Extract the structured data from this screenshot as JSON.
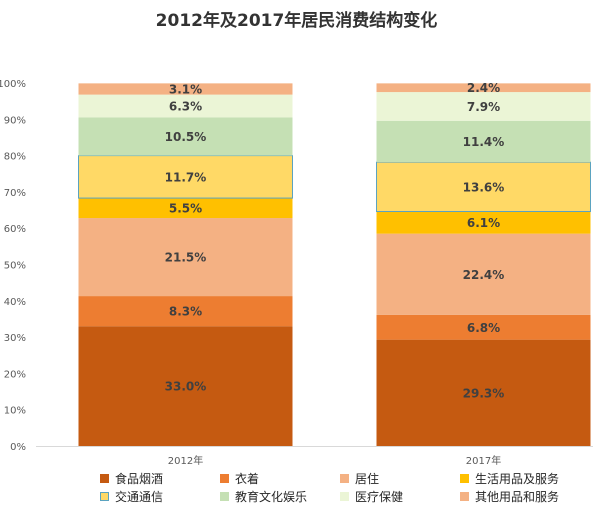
{
  "chart_data": {
    "type": "bar",
    "stacked": true,
    "percent": true,
    "title": "2012年及2017年居民消费结构变化",
    "categories": [
      "2012年",
      "2017年"
    ],
    "ylim": [
      0,
      100
    ],
    "yticks": [
      "0%",
      "10%",
      "20%",
      "30%",
      "40%",
      "50%",
      "60%",
      "70%",
      "80%",
      "90%",
      "100%"
    ],
    "legend_position": "bottom",
    "series": [
      {
        "name": "食品烟酒",
        "values": [
          33.0,
          29.3
        ],
        "labels": [
          "33.0%",
          "29.3%"
        ],
        "color": "#C55A11"
      },
      {
        "name": "衣着",
        "values": [
          8.3,
          6.8
        ],
        "labels": [
          "8.3%",
          "6.8%"
        ],
        "color": "#ED7D31"
      },
      {
        "name": "居住",
        "values": [
          21.5,
          22.4
        ],
        "labels": [
          "21.5%",
          "22.4%"
        ],
        "color": "#F4B183"
      },
      {
        "name": "生活用品及服务",
        "values": [
          5.5,
          6.1
        ],
        "labels": [
          "5.5%",
          "6.1%"
        ],
        "color": "#FFC000"
      },
      {
        "name": "交通通信",
        "values": [
          11.7,
          13.6
        ],
        "labels": [
          "11.7%",
          "13.6%"
        ],
        "color": "#FFD966",
        "border": "#5BA3C0"
      },
      {
        "name": "教育文化娱乐",
        "values": [
          10.5,
          11.4
        ],
        "labels": [
          "10.5%",
          "11.4%"
        ],
        "color": "#C5E0B4"
      },
      {
        "name": "医疗保健",
        "values": [
          6.3,
          7.9
        ],
        "labels": [
          "6.3%",
          "7.9%"
        ],
        "color": "#EBF5D6"
      },
      {
        "name": "其他用品和服务",
        "values": [
          3.1,
          2.4
        ],
        "labels": [
          "3.1%",
          "2.4%"
        ],
        "color": "#F4B183"
      }
    ]
  }
}
